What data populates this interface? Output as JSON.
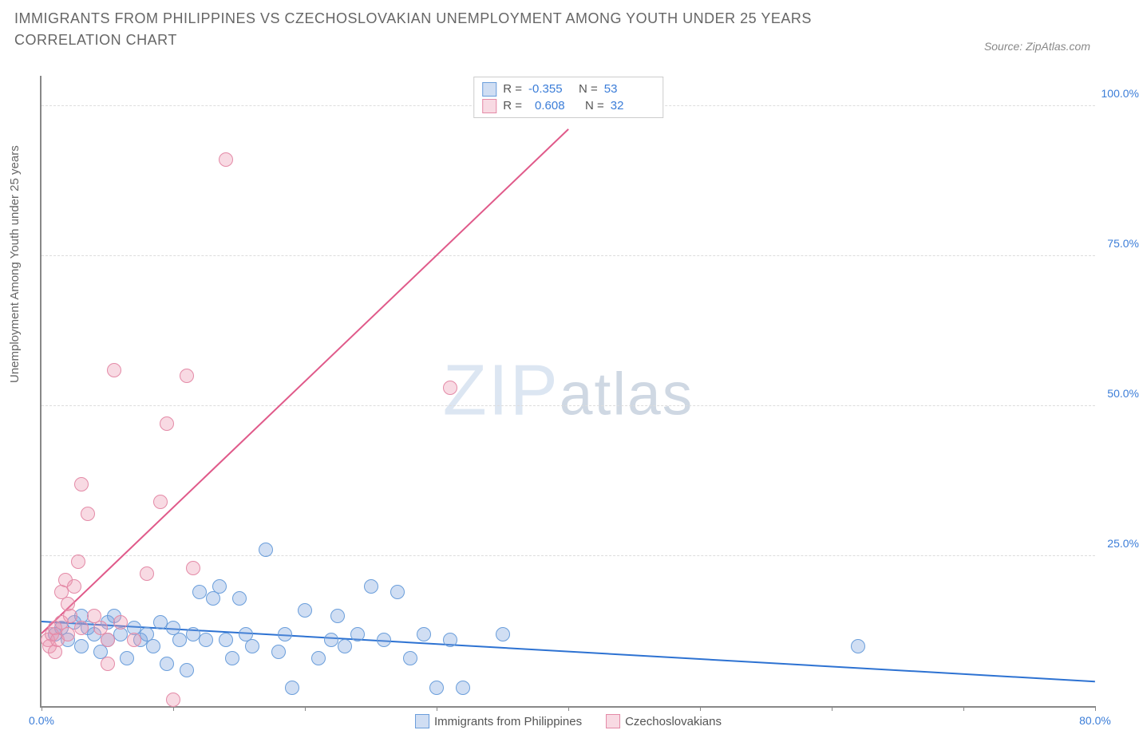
{
  "title": "IMMIGRANTS FROM PHILIPPINES VS CZECHOSLOVAKIAN UNEMPLOYMENT AMONG YOUTH UNDER 25 YEARS CORRELATION CHART",
  "source": "Source: ZipAtlas.com",
  "ylabel": "Unemployment Among Youth under 25 years",
  "watermark_a": "ZIP",
  "watermark_b": "atlas",
  "chart": {
    "type": "scatter",
    "xlim": [
      0,
      80
    ],
    "ylim": [
      0,
      105
    ],
    "xticks": [
      0,
      10,
      20,
      30,
      40,
      50,
      60,
      70,
      80
    ],
    "xtick_labels": {
      "0": "0.0%",
      "80": "80.0%"
    },
    "yticks": [
      25,
      50,
      75,
      100
    ],
    "ytick_labels": [
      "25.0%",
      "50.0%",
      "75.0%",
      "100.0%"
    ],
    "grid_color": "#dddddd",
    "axis_color": "#888888",
    "background": "#ffffff",
    "series": [
      {
        "name": "Immigrants from Philippines",
        "color_fill": "rgba(120,160,220,0.35)",
        "color_stroke": "#6a9edb",
        "marker_size": 18,
        "trend": {
          "x1": 0,
          "y1": 14,
          "x2": 80,
          "y2": 4,
          "color": "#2d72d2",
          "width": 2
        },
        "stats": {
          "R": "-0.355",
          "N": "53"
        },
        "points": [
          [
            1,
            12
          ],
          [
            1.5,
            13
          ],
          [
            2,
            11
          ],
          [
            2.5,
            14
          ],
          [
            3,
            10
          ],
          [
            3,
            15
          ],
          [
            3.5,
            13
          ],
          [
            4,
            12
          ],
          [
            4.5,
            9
          ],
          [
            5,
            11
          ],
          [
            5,
            14
          ],
          [
            5.5,
            15
          ],
          [
            6,
            12
          ],
          [
            6.5,
            8
          ],
          [
            7,
            13
          ],
          [
            7.5,
            11
          ],
          [
            8,
            12
          ],
          [
            8.5,
            10
          ],
          [
            9,
            14
          ],
          [
            9.5,
            7
          ],
          [
            10,
            13
          ],
          [
            10.5,
            11
          ],
          [
            11,
            6
          ],
          [
            11.5,
            12
          ],
          [
            12,
            19
          ],
          [
            12.5,
            11
          ],
          [
            13,
            18
          ],
          [
            13.5,
            20
          ],
          [
            14,
            11
          ],
          [
            14.5,
            8
          ],
          [
            15,
            18
          ],
          [
            15.5,
            12
          ],
          [
            16,
            10
          ],
          [
            17,
            26
          ],
          [
            18,
            9
          ],
          [
            18.5,
            12
          ],
          [
            19,
            3
          ],
          [
            20,
            16
          ],
          [
            21,
            8
          ],
          [
            22,
            11
          ],
          [
            22.5,
            15
          ],
          [
            23,
            10
          ],
          [
            24,
            12
          ],
          [
            25,
            20
          ],
          [
            26,
            11
          ],
          [
            27,
            19
          ],
          [
            28,
            8
          ],
          [
            29,
            12
          ],
          [
            30,
            3
          ],
          [
            31,
            11
          ],
          [
            32,
            3
          ],
          [
            35,
            12
          ],
          [
            62,
            10
          ]
        ]
      },
      {
        "name": "Czechoslovakians",
        "color_fill": "rgba(235,150,175,0.35)",
        "color_stroke": "#e48aa7",
        "marker_size": 18,
        "trend": {
          "x1": 0,
          "y1": 12,
          "x2": 40,
          "y2": 96,
          "color": "#e05a8a",
          "width": 2
        },
        "stats": {
          "R": "0.608",
          "N": "32"
        },
        "points": [
          [
            0.5,
            11
          ],
          [
            0.6,
            10
          ],
          [
            0.8,
            12
          ],
          [
            1,
            9
          ],
          [
            1,
            13
          ],
          [
            1.2,
            11
          ],
          [
            1.5,
            19
          ],
          [
            1.5,
            14
          ],
          [
            1.8,
            21
          ],
          [
            2,
            12
          ],
          [
            2,
            17
          ],
          [
            2.2,
            15
          ],
          [
            2.5,
            20
          ],
          [
            2.8,
            24
          ],
          [
            3,
            13
          ],
          [
            3,
            37
          ],
          [
            3.5,
            32
          ],
          [
            4,
            15
          ],
          [
            4.5,
            13
          ],
          [
            5,
            11
          ],
          [
            5,
            7
          ],
          [
            5.5,
            56
          ],
          [
            6,
            14
          ],
          [
            7,
            11
          ],
          [
            8,
            22
          ],
          [
            9,
            34
          ],
          [
            9.5,
            47
          ],
          [
            10,
            1
          ],
          [
            11,
            55
          ],
          [
            11.5,
            23
          ],
          [
            14,
            91
          ],
          [
            31,
            53
          ]
        ]
      }
    ]
  }
}
